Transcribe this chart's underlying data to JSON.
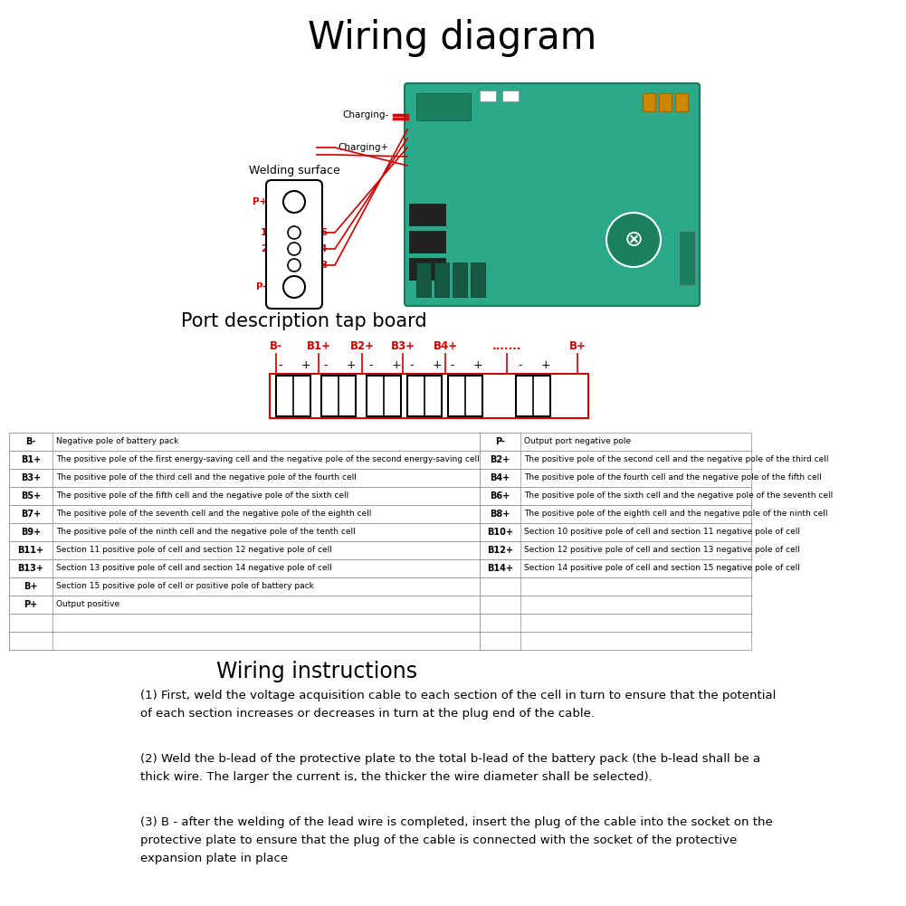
{
  "title": "Wiring diagram",
  "bg_color": "#ffffff",
  "title_fontsize": 30,
  "red_color": "#cc0000",
  "section_title": "Port description tap board",
  "section_title_fontsize": 15,
  "battery_labels_top": [
    "B-",
    "B1+",
    "B2+",
    "B3+",
    "B4+",
    ".......",
    "B+"
  ],
  "left_table": [
    [
      "B-",
      "Negative pole of battery pack"
    ],
    [
      "B1+",
      "The positive pole of the first energy-saving cell and the negative pole of the second energy-saving cell"
    ],
    [
      "B3+",
      "The positive pole of the third cell and the negative pole of the fourth cell"
    ],
    [
      "B5+",
      "The positive pole of the fifth cell and the negative pole of the sixth cell"
    ],
    [
      "B7+",
      "The positive pole of the seventh cell and the negative pole of the eighth cell"
    ],
    [
      "B9+",
      "The positive pole of the ninth cell and the negative pole of the tenth cell"
    ],
    [
      "B11+",
      "Section 11 positive pole of cell and section 12 negative pole of cell"
    ],
    [
      "B13+",
      "Section 13 positive pole of cell and section 14 negative pole of cell"
    ],
    [
      "B+",
      "Section 15 positive pole of cell or positive pole of battery pack"
    ],
    [
      "P+",
      "Output positive"
    ],
    [
      "",
      ""
    ],
    [
      "",
      ""
    ]
  ],
  "right_table": [
    [
      "P-",
      "Output port negative pole"
    ],
    [
      "B2+",
      "The positive pole of the second cell and the negative pole of the third cell"
    ],
    [
      "B4+",
      "The positive pole of the fourth cell and the negative pole of the fifth cell"
    ],
    [
      "B6+",
      "The positive pole of the sixth cell and the negative pole of the seventh cell"
    ],
    [
      "B8+",
      "The positive pole of the eighth cell and the negative pole of the ninth cell"
    ],
    [
      "B10+",
      "Section 10 positive pole of cell and section 11 negative pole of cell"
    ],
    [
      "B12+",
      "Section 12 positive pole of cell and section 13 negative pole of cell"
    ],
    [
      "B14+",
      "Section 14 positive pole of cell and section 15 negative pole of cell"
    ],
    [
      "",
      ""
    ],
    [
      "",
      ""
    ],
    [
      "",
      ""
    ],
    [
      "",
      ""
    ]
  ],
  "wiring_title": "Wiring instructions",
  "wiring_text1": "(1) First, weld the voltage acquisition cable to each section of the cell in turn to ensure that the potential\nof each section increases or decreases in turn at the plug end of the cable.",
  "wiring_text2": "(2) Weld the b-lead of the protective plate to the total b-lead of the battery pack (the b-lead shall be a\nthick wire. The larger the current is, the thicker the wire diameter shall be selected).",
  "wiring_text3": "(3) B - after the welding of the lead wire is completed, insert the plug of the cable into the socket on the\nprotective plate to ensure that the plug of the cable is connected with the socket of the protective\nexpansion plate in place"
}
